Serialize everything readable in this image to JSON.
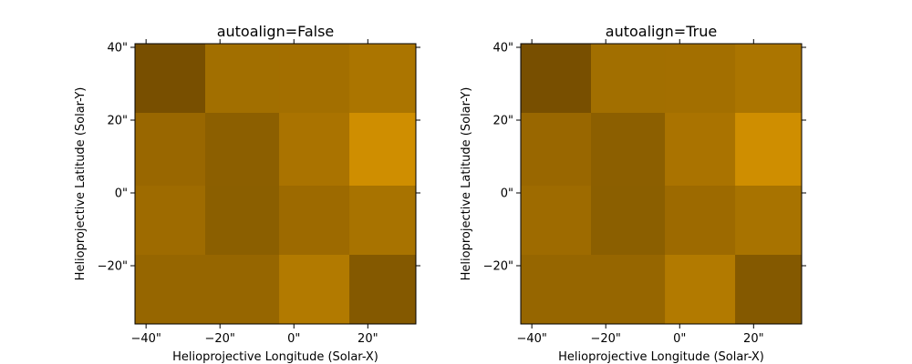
{
  "chart_data": [
    {
      "type": "heatmap",
      "title": "autoalign=False",
      "xlabel": "Helioprojective Longitude (Solar-X)",
      "ylabel": "Helioprojective Latitude (Solar-Y)",
      "xlim": [
        -43,
        33
      ],
      "ylim": [
        -36,
        41
      ],
      "x_ticks": [
        -40,
        -20,
        0,
        20
      ],
      "x_tick_labels": [
        "−40\"",
        "−20\"",
        "0\"",
        "20\""
      ],
      "y_ticks": [
        -20,
        0,
        20,
        40
      ],
      "y_tick_labels": [
        "−20\"",
        "0\"",
        "20\"",
        "40\""
      ],
      "x_edges": [
        -43,
        -24,
        -4,
        15,
        33
      ],
      "y_edges": [
        -36,
        -17,
        2,
        22,
        41
      ],
      "colors_top_to_bottom": [
        [
          "#784f00",
          "#a26f00",
          "#a36f00",
          "#ab7500"
        ],
        [
          "#996700",
          "#8c5f00",
          "#aa7300",
          "#cf8e00"
        ],
        [
          "#9e6b00",
          "#8b5f00",
          "#9d6a00",
          "#a87300"
        ],
        [
          "#966600",
          "#966600",
          "#b27a00",
          "#845900"
        ]
      ]
    },
    {
      "type": "heatmap",
      "title": "autoalign=True",
      "xlabel": "Helioprojective Longitude (Solar-X)",
      "ylabel": "Helioprojective Latitude (Solar-Y)",
      "xlim": [
        -43,
        33
      ],
      "ylim": [
        -36,
        41
      ],
      "x_ticks": [
        -40,
        -20,
        0,
        20
      ],
      "x_tick_labels": [
        "−40\"",
        "−20\"",
        "0\"",
        "20\""
      ],
      "y_ticks": [
        -20,
        0,
        20,
        40
      ],
      "y_tick_labels": [
        "−20\"",
        "0\"",
        "20\"",
        "40\""
      ],
      "x_edges": [
        -43,
        -24,
        -4,
        15,
        33
      ],
      "y_edges": [
        -36,
        -17,
        2,
        22,
        41
      ],
      "colors_top_to_bottom": [
        [
          "#784f00",
          "#a26f00",
          "#a36f00",
          "#ab7500"
        ],
        [
          "#996700",
          "#8c5f00",
          "#aa7300",
          "#cf8e00"
        ],
        [
          "#9e6b00",
          "#8b5f00",
          "#9d6a00",
          "#a87300"
        ],
        [
          "#966600",
          "#966600",
          "#b27a00",
          "#845900"
        ]
      ]
    }
  ]
}
